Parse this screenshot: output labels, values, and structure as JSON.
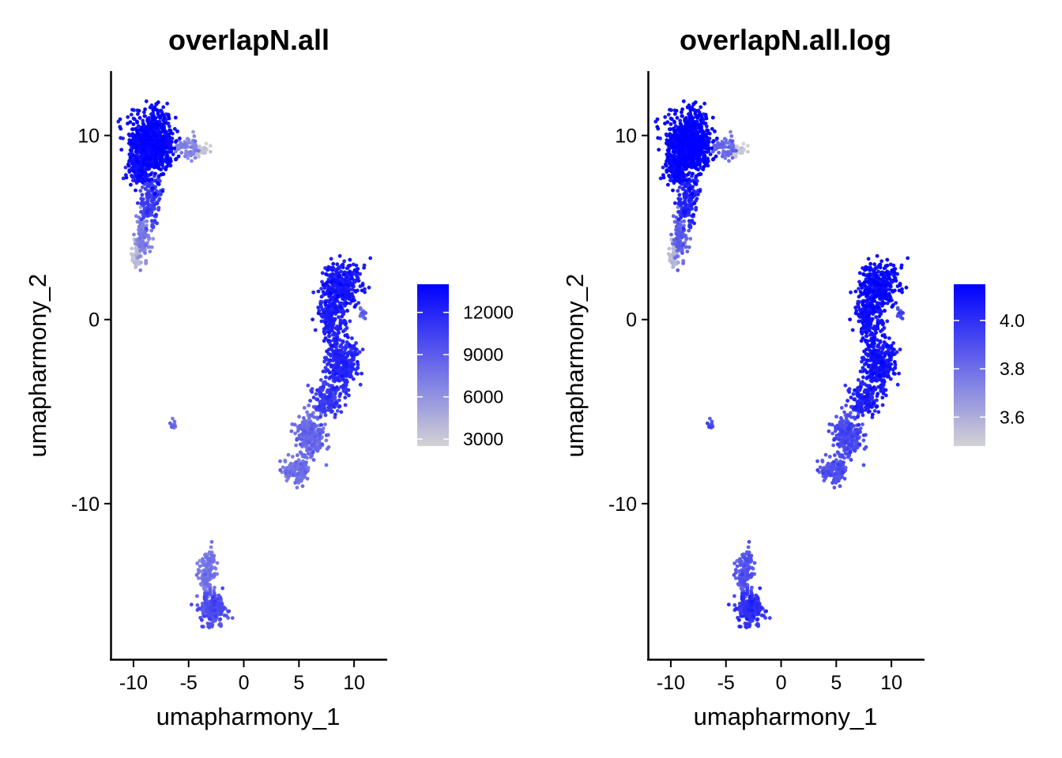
{
  "chart_data": [
    {
      "type": "scatter",
      "title": "overlapN.all",
      "xlabel": "umapharmony_1",
      "ylabel": "umapharmony_2",
      "xlim": [
        -12,
        13
      ],
      "ylim": [
        -18.5,
        13.5
      ],
      "xticks": [
        -10,
        -5,
        0,
        5,
        10
      ],
      "xtick_labels": [
        "-10",
        "-5",
        "0",
        "5",
        "10"
      ],
      "yticks": [
        10,
        0,
        -10
      ],
      "ytick_labels": [
        "10",
        "0",
        "-10"
      ],
      "grid": false,
      "color_scale": {
        "low_color": "#d3d3d3",
        "high_color": "#0000ff",
        "min": 2500,
        "max": 14000,
        "ticks": [
          12000,
          9000,
          6000,
          3000
        ],
        "tick_labels": [
          "12000",
          "9000",
          "6000",
          "3000"
        ],
        "legend_position": "right"
      },
      "clusters": [
        {
          "cx": -8.3,
          "cy": 9.6,
          "sx": 1.3,
          "sy": 1.1,
          "n": 900,
          "value": 13200
        },
        {
          "cx": -9.5,
          "cy": 8.2,
          "sx": 0.6,
          "sy": 0.6,
          "n": 150,
          "value": 12600
        },
        {
          "cx": -8.5,
          "cy": 6.5,
          "sx": 0.6,
          "sy": 0.9,
          "n": 160,
          "value": 10400
        },
        {
          "cx": -9.2,
          "cy": 4.6,
          "sx": 0.4,
          "sy": 0.8,
          "n": 110,
          "value": 6800
        },
        {
          "cx": -9.6,
          "cy": 3.6,
          "sx": 0.3,
          "sy": 0.5,
          "n": 60,
          "value": 3600
        },
        {
          "cx": -5.0,
          "cy": 9.3,
          "sx": 0.7,
          "sy": 0.4,
          "n": 60,
          "value": 6500
        },
        {
          "cx": -3.9,
          "cy": 9.2,
          "sx": 0.5,
          "sy": 0.2,
          "n": 40,
          "value": 3000
        },
        {
          "cx": 8.9,
          "cy": 1.9,
          "sx": 1.1,
          "sy": 0.8,
          "n": 320,
          "value": 12400
        },
        {
          "cx": 8.0,
          "cy": 0.2,
          "sx": 0.8,
          "sy": 0.9,
          "n": 220,
          "value": 12000
        },
        {
          "cx": 8.8,
          "cy": -2.4,
          "sx": 0.9,
          "sy": 0.9,
          "n": 320,
          "value": 11600
        },
        {
          "cx": 7.6,
          "cy": -4.3,
          "sx": 0.9,
          "sy": 0.6,
          "n": 170,
          "value": 10600
        },
        {
          "cx": 6.0,
          "cy": -6.3,
          "sx": 0.9,
          "sy": 0.8,
          "n": 230,
          "value": 8000
        },
        {
          "cx": 4.8,
          "cy": -8.2,
          "sx": 0.8,
          "sy": 0.45,
          "n": 130,
          "value": 7600
        },
        {
          "cx": 10.8,
          "cy": 0.2,
          "sx": 0.3,
          "sy": 0.3,
          "n": 12,
          "value": 8200
        },
        {
          "cx": -6.4,
          "cy": -5.7,
          "sx": 0.12,
          "sy": 0.25,
          "n": 14,
          "value": 7500
        },
        {
          "cx": -3.3,
          "cy": -13.8,
          "sx": 0.5,
          "sy": 0.8,
          "n": 140,
          "value": 7200
        },
        {
          "cx": -2.8,
          "cy": -15.7,
          "sx": 0.8,
          "sy": 0.6,
          "n": 220,
          "value": 9500
        }
      ]
    },
    {
      "type": "scatter",
      "title": "overlapN.all.log",
      "xlabel": "umapharmony_1",
      "ylabel": "umapharmony_2",
      "xlim": [
        -12,
        13
      ],
      "ylim": [
        -18.5,
        13.5
      ],
      "xticks": [
        -10,
        -5,
        0,
        5,
        10
      ],
      "xtick_labels": [
        "-10",
        "-5",
        "0",
        "5",
        "10"
      ],
      "yticks": [
        10,
        0,
        -10
      ],
      "ytick_labels": [
        "10",
        "0",
        "-10"
      ],
      "grid": false,
      "color_scale": {
        "low_color": "#d3d3d3",
        "high_color": "#0000ff",
        "min": 3.48,
        "max": 4.15,
        "ticks": [
          4.0,
          3.8,
          3.6
        ],
        "tick_labels": [
          "4.0",
          "3.8",
          "3.6"
        ],
        "legend_position": "right"
      },
      "clusters": [
        {
          "cx": -8.3,
          "cy": 9.6,
          "sx": 1.3,
          "sy": 1.1,
          "n": 900,
          "value": 4.12
        },
        {
          "cx": -9.5,
          "cy": 8.2,
          "sx": 0.6,
          "sy": 0.6,
          "n": 150,
          "value": 4.1
        },
        {
          "cx": -8.5,
          "cy": 6.5,
          "sx": 0.6,
          "sy": 0.9,
          "n": 160,
          "value": 4.02
        },
        {
          "cx": -9.2,
          "cy": 4.6,
          "sx": 0.4,
          "sy": 0.8,
          "n": 110,
          "value": 3.83
        },
        {
          "cx": -9.6,
          "cy": 3.6,
          "sx": 0.3,
          "sy": 0.5,
          "n": 60,
          "value": 3.56
        },
        {
          "cx": -5.0,
          "cy": 9.3,
          "sx": 0.7,
          "sy": 0.4,
          "n": 60,
          "value": 3.8
        },
        {
          "cx": -3.9,
          "cy": 9.2,
          "sx": 0.5,
          "sy": 0.2,
          "n": 40,
          "value": 3.49
        },
        {
          "cx": 8.9,
          "cy": 1.9,
          "sx": 1.1,
          "sy": 0.8,
          "n": 320,
          "value": 4.1
        },
        {
          "cx": 8.0,
          "cy": 0.2,
          "sx": 0.8,
          "sy": 0.9,
          "n": 220,
          "value": 4.08
        },
        {
          "cx": 8.8,
          "cy": -2.4,
          "sx": 0.9,
          "sy": 0.9,
          "n": 320,
          "value": 4.07
        },
        {
          "cx": 7.6,
          "cy": -4.3,
          "sx": 0.9,
          "sy": 0.6,
          "n": 170,
          "value": 4.03
        },
        {
          "cx": 6.0,
          "cy": -6.3,
          "sx": 0.9,
          "sy": 0.8,
          "n": 230,
          "value": 3.9
        },
        {
          "cx": 4.8,
          "cy": -8.2,
          "sx": 0.8,
          "sy": 0.45,
          "n": 130,
          "value": 3.88
        },
        {
          "cx": 10.8,
          "cy": 0.2,
          "sx": 0.3,
          "sy": 0.3,
          "n": 12,
          "value": 3.9
        },
        {
          "cx": -6.4,
          "cy": -5.7,
          "sx": 0.12,
          "sy": 0.25,
          "n": 14,
          "value": 3.87
        },
        {
          "cx": -3.3,
          "cy": -13.8,
          "sx": 0.5,
          "sy": 0.8,
          "n": 140,
          "value": 3.86
        },
        {
          "cx": -2.8,
          "cy": -15.7,
          "sx": 0.8,
          "sy": 0.6,
          "n": 220,
          "value": 3.98
        }
      ]
    }
  ]
}
